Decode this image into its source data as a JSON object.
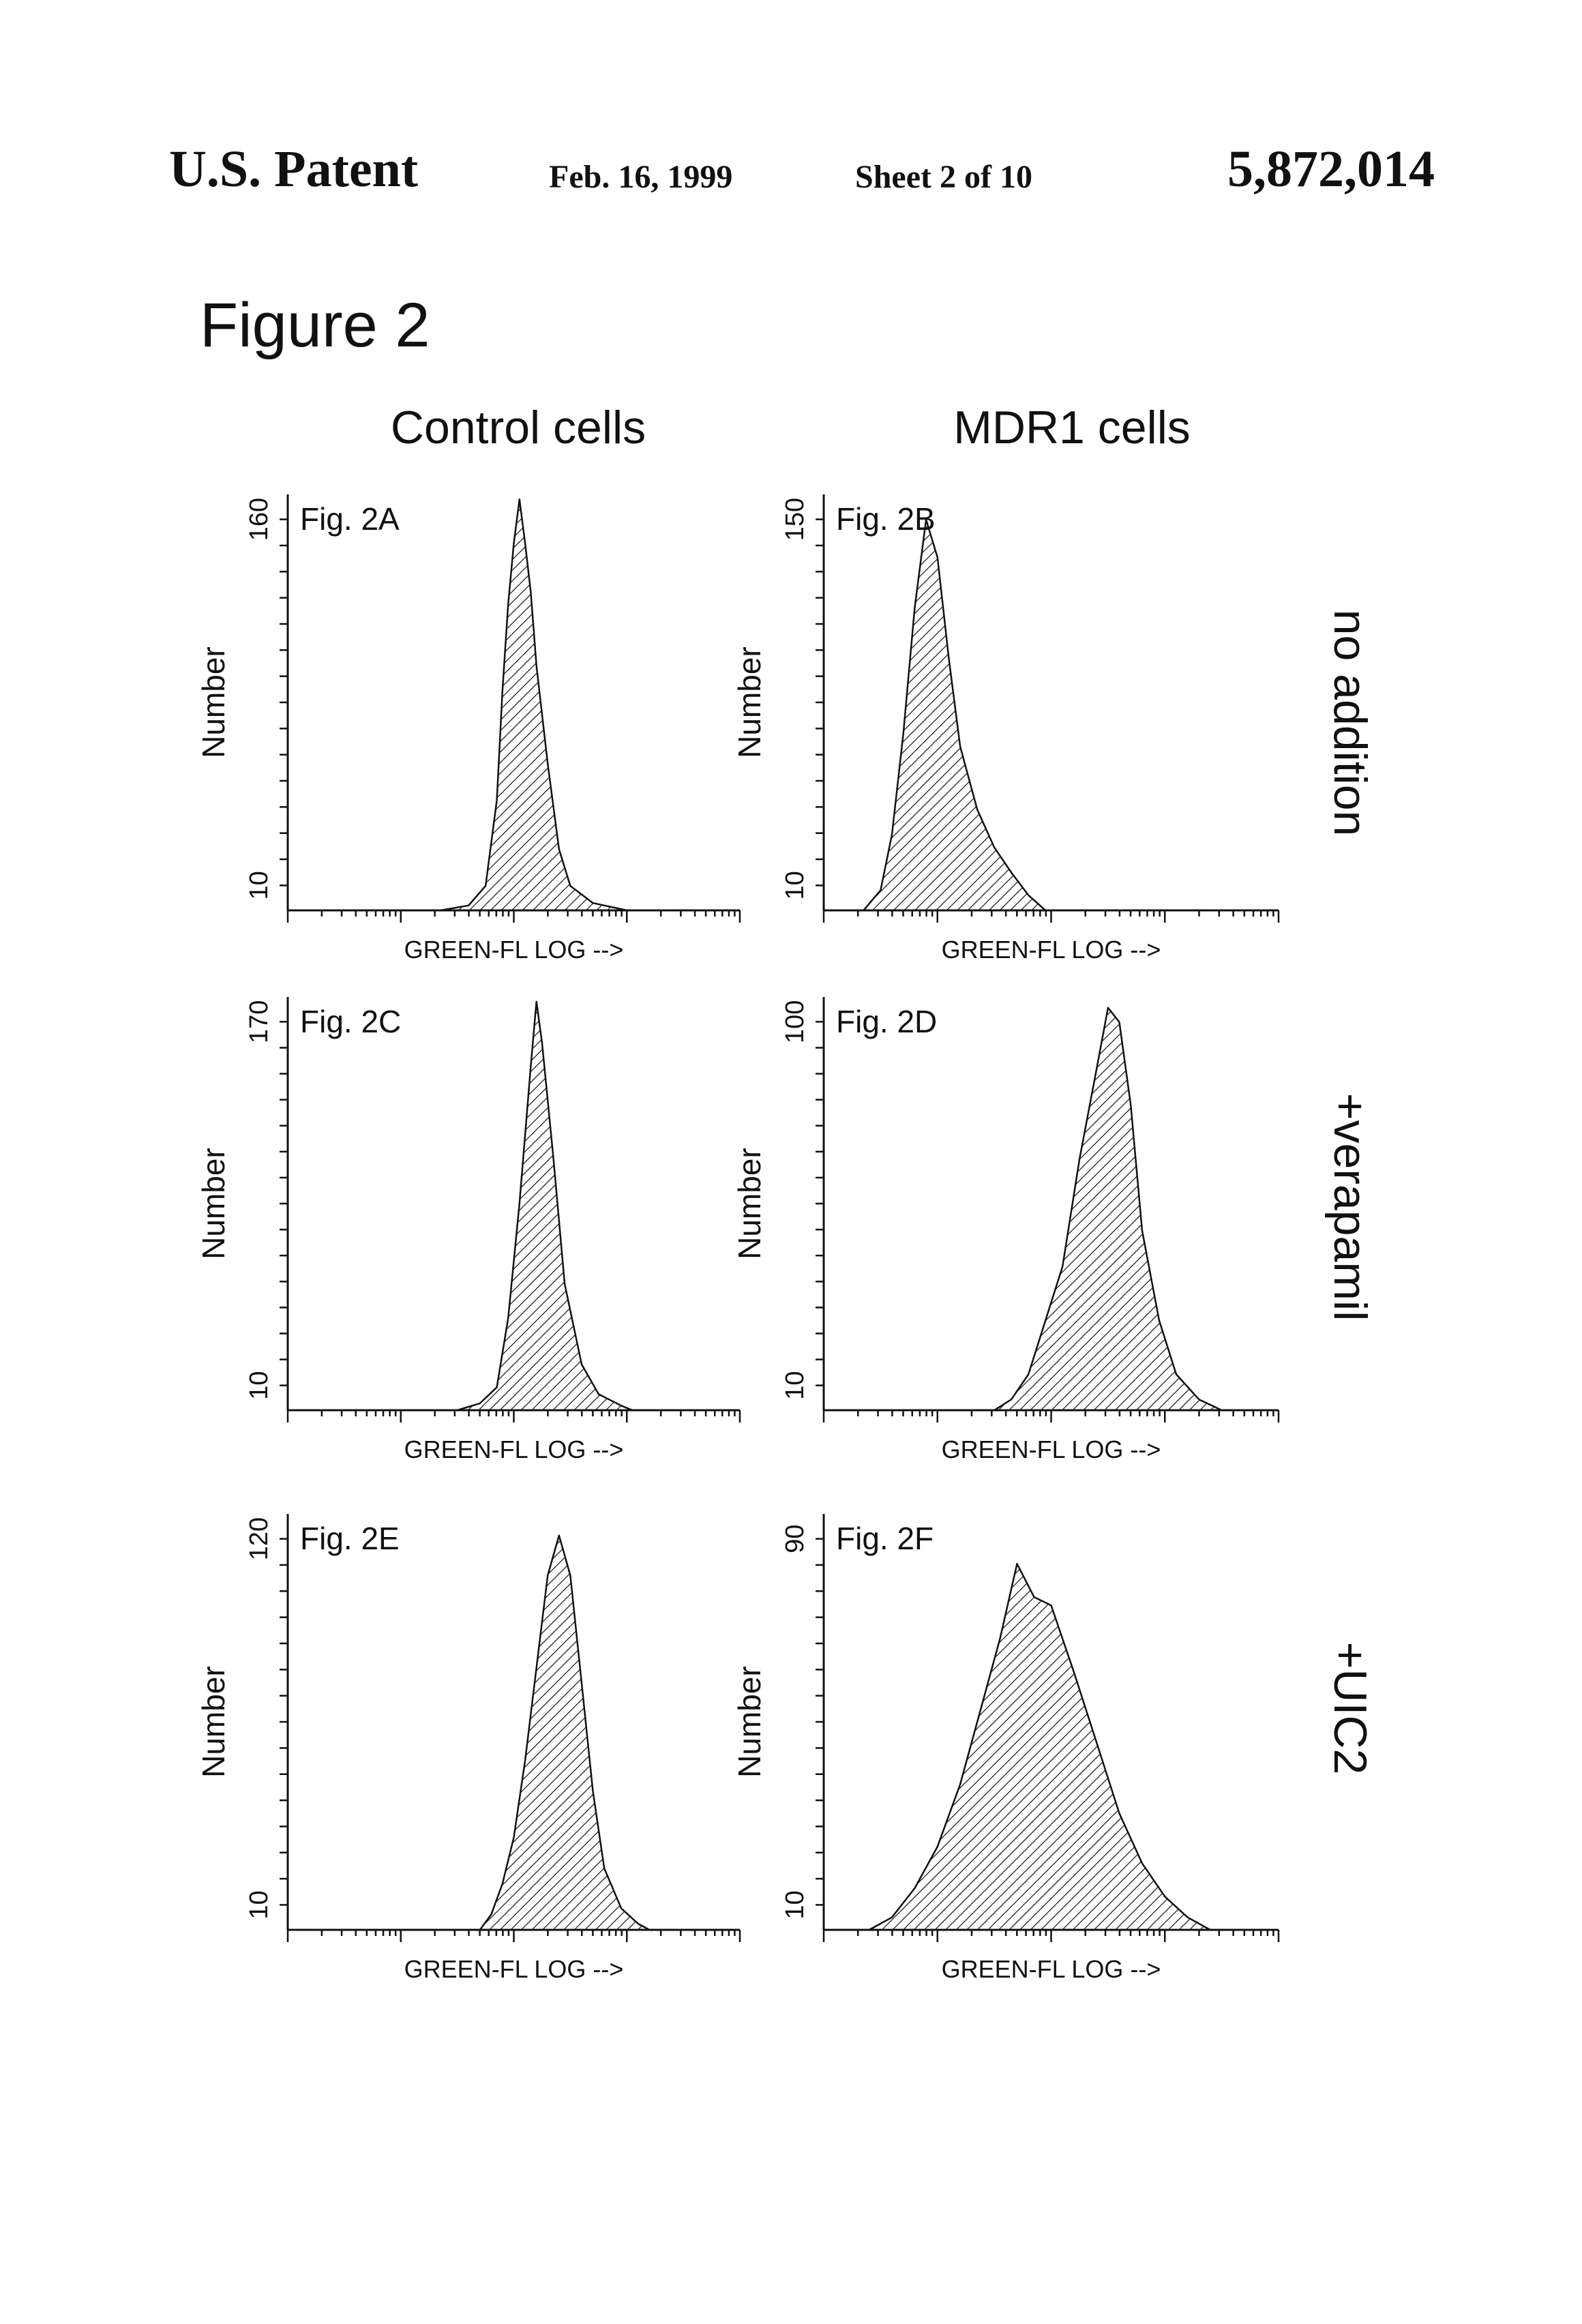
{
  "header": {
    "patent_label": "U.S. Patent",
    "date": "Feb. 16, 1999",
    "sheet": "Sheet 2 of 10",
    "patent_number": "5,872,014"
  },
  "figure_title": "Figure 2",
  "columns": [
    "Control cells",
    "MDR1 cells"
  ],
  "rows": [
    "no addition",
    "+verapamil",
    "+UIC2"
  ],
  "chart_data": [
    {
      "type": "area",
      "label": "Fig. 2A",
      "column": "Control cells",
      "row": "no addition",
      "xlabel": "GREEN-FL LOG -->",
      "ylabel": "Number",
      "y_ticks": [
        "10",
        "160"
      ],
      "ylim": [
        0,
        170
      ],
      "xlim": [
        0,
        4
      ],
      "x_scale": "log",
      "x": [
        1.35,
        1.6,
        1.75,
        1.85,
        1.9,
        1.95,
        2.0,
        2.05,
        2.1,
        2.15,
        2.2,
        2.3,
        2.4,
        2.5,
        2.7,
        2.9,
        3.0
      ],
      "y": [
        0,
        2,
        10,
        45,
        90,
        125,
        150,
        168,
        150,
        130,
        100,
        60,
        25,
        10,
        3,
        1,
        0
      ]
    },
    {
      "type": "area",
      "label": "Fig. 2B",
      "column": "MDR1 cells",
      "row": "no addition",
      "xlabel": "GREEN-FL LOG -->",
      "ylabel": "Number",
      "y_ticks": [
        "10",
        "150"
      ],
      "ylim": [
        0,
        165
      ],
      "xlim": [
        0,
        4
      ],
      "x_scale": "log",
      "x": [
        0.35,
        0.5,
        0.6,
        0.7,
        0.8,
        0.9,
        1.0,
        1.1,
        1.2,
        1.35,
        1.5,
        1.65,
        1.8,
        1.95
      ],
      "y": [
        0,
        8,
        30,
        70,
        120,
        155,
        140,
        100,
        65,
        40,
        25,
        15,
        6,
        0
      ]
    },
    {
      "type": "area",
      "label": "Fig. 2C",
      "column": "Control cells",
      "row": "+verapamil",
      "xlabel": "GREEN-FL LOG -->",
      "ylabel": "Number",
      "y_ticks": [
        "10",
        "170"
      ],
      "ylim": [
        0,
        180
      ],
      "xlim": [
        0,
        4
      ],
      "x_scale": "log",
      "x": [
        1.5,
        1.7,
        1.85,
        1.95,
        2.05,
        2.15,
        2.2,
        2.25,
        2.35,
        2.45,
        2.6,
        2.75,
        2.95,
        3.05
      ],
      "y": [
        0,
        3,
        10,
        40,
        90,
        150,
        178,
        160,
        110,
        55,
        20,
        7,
        2,
        0
      ]
    },
    {
      "type": "area",
      "label": "Fig. 2D",
      "column": "MDR1 cells",
      "row": "+verapamil",
      "xlabel": "GREEN-FL LOG -->",
      "ylabel": "Number",
      "y_ticks": [
        "10",
        "100"
      ],
      "ylim": [
        0,
        115
      ],
      "xlim": [
        0,
        4
      ],
      "x_scale": "log",
      "x": [
        1.5,
        1.65,
        1.8,
        1.95,
        2.1,
        2.25,
        2.4,
        2.5,
        2.6,
        2.7,
        2.8,
        2.95,
        3.1,
        3.3,
        3.5
      ],
      "y": [
        0,
        3,
        10,
        25,
        40,
        70,
        95,
        112,
        108,
        85,
        50,
        25,
        10,
        3,
        0
      ]
    },
    {
      "type": "area",
      "label": "Fig. 2E",
      "column": "Control cells",
      "row": "+UIC2",
      "xlabel": "GREEN-FL LOG -->",
      "ylabel": "Number",
      "y_ticks": [
        "10",
        "120"
      ],
      "ylim": [
        0,
        135
      ],
      "xlim": [
        0,
        4
      ],
      "x_scale": "log",
      "x": [
        1.7,
        1.8,
        1.9,
        2.0,
        2.1,
        2.2,
        2.3,
        2.4,
        2.5,
        2.6,
        2.7,
        2.8,
        2.95,
        3.1,
        3.2
      ],
      "y": [
        0,
        5,
        15,
        30,
        55,
        85,
        115,
        128,
        115,
        80,
        45,
        20,
        7,
        2,
        0
      ]
    },
    {
      "type": "area",
      "label": "Fig. 2F",
      "column": "MDR1 cells",
      "row": "+UIC2",
      "xlabel": "GREEN-FL LOG -->",
      "ylabel": "Number",
      "y_ticks": [
        "10",
        "90"
      ],
      "ylim": [
        0,
        100
      ],
      "xlim": [
        0,
        4
      ],
      "x_scale": "log",
      "x": [
        0.4,
        0.6,
        0.8,
        1.0,
        1.2,
        1.4,
        1.55,
        1.7,
        1.85,
        2.0,
        2.2,
        2.4,
        2.6,
        2.8,
        3.0,
        3.2,
        3.4
      ],
      "y": [
        0,
        3,
        10,
        20,
        35,
        55,
        70,
        88,
        80,
        78,
        62,
        45,
        28,
        16,
        8,
        3,
        0
      ]
    }
  ]
}
